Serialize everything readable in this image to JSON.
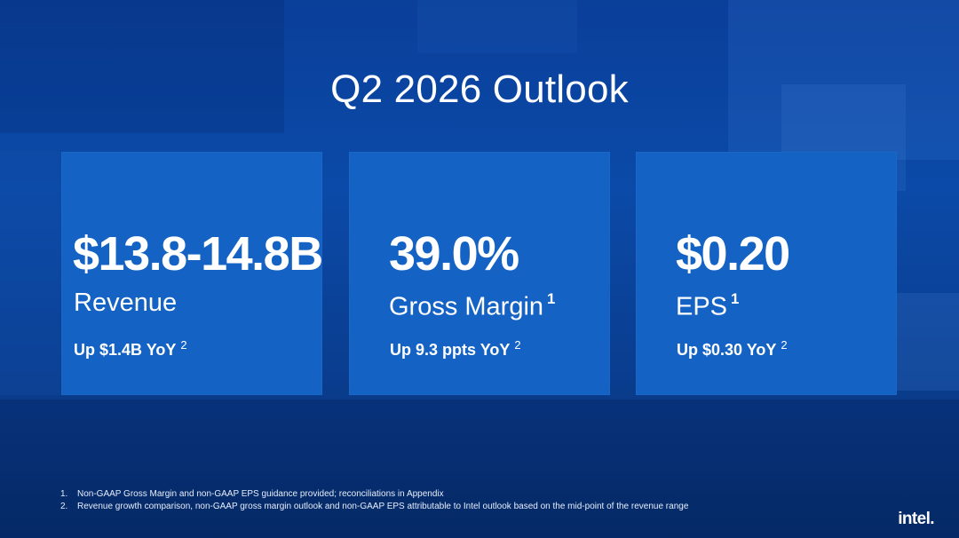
{
  "slide": {
    "title": "Q2 2026 Outlook"
  },
  "cards": [
    {
      "value": "$13.8-14.8B",
      "label": "Revenue",
      "label_footnote": "",
      "sub": "Up $1.4B YoY",
      "sub_footnote": "2"
    },
    {
      "value": "39.0%",
      "label": "Gross Margin",
      "label_footnote": "1",
      "sub": "Up 9.3 ppts YoY",
      "sub_footnote": "2"
    },
    {
      "value": "$0.20",
      "label": "EPS",
      "label_footnote": "1",
      "sub": "Up $0.30 YoY",
      "sub_footnote": "2"
    }
  ],
  "footnotes": [
    {
      "number": "1.",
      "text": "Non-GAAP Gross Margin and non-GAAP EPS guidance provided; reconciliations in Appendix"
    },
    {
      "number": "2.",
      "text": "Revenue growth comparison, non-GAAP gross margin outlook and non-GAAP EPS attributable to Intel outlook based on the mid-point of the revenue range"
    }
  ],
  "logo": {
    "text": "intel."
  },
  "colors": {
    "background": "#0b4aa8",
    "card": "#1463c4",
    "text": "#ffffff"
  }
}
